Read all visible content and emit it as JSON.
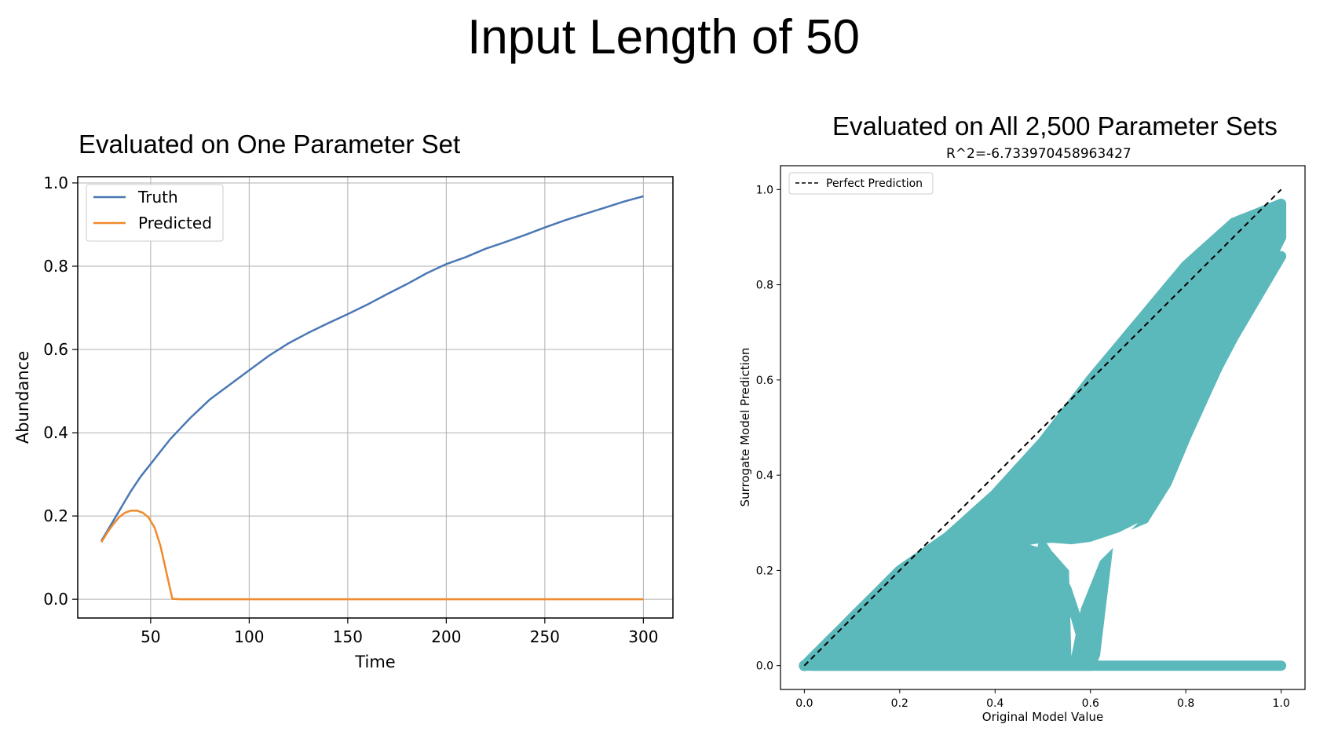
{
  "page": {
    "main_title": "Input Length of 50",
    "left_panel_title": "Evaluated on One Parameter Set",
    "right_panel_title": "Evaluated on All 2,500 Parameter Sets",
    "right_panel_subtitle": "R^2=-6.733970458963427"
  },
  "colors": {
    "truth": "#4a78b4",
    "predicted": "#f08a2e",
    "scatter": "#5bb8bb",
    "perfect": "#000000"
  },
  "chart_data": [
    {
      "type": "line",
      "title": "Evaluated on One Parameter Set",
      "xlabel": "Time",
      "ylabel": "Abundance",
      "xlim": [
        13,
        315
      ],
      "ylim": [
        -0.045,
        1.015
      ],
      "xticks": [
        50,
        100,
        150,
        200,
        250,
        300
      ],
      "yticks": [
        0.0,
        0.2,
        0.4,
        0.6,
        0.8,
        1.0
      ],
      "ytick_labels": [
        "0.0",
        "0.2",
        "0.4",
        "0.6",
        "0.8",
        "1.0"
      ],
      "grid": true,
      "legend": "top-left",
      "series": [
        {
          "name": "Truth",
          "x": [
            25,
            30,
            35,
            40,
            45,
            50,
            55,
            60,
            65,
            70,
            80,
            90,
            100,
            110,
            120,
            130,
            140,
            150,
            160,
            170,
            180,
            190,
            200,
            210,
            220,
            230,
            240,
            250,
            260,
            270,
            280,
            290,
            300
          ],
          "y": [
            0.14,
            0.18,
            0.22,
            0.26,
            0.295,
            0.325,
            0.355,
            0.385,
            0.41,
            0.435,
            0.48,
            0.515,
            0.55,
            0.585,
            0.615,
            0.64,
            0.663,
            0.685,
            0.708,
            0.733,
            0.757,
            0.783,
            0.805,
            0.822,
            0.842,
            0.858,
            0.875,
            0.893,
            0.91,
            0.925,
            0.94,
            0.955,
            0.968
          ]
        },
        {
          "name": "Predicted",
          "x": [
            25,
            28,
            31,
            34,
            37,
            40,
            43,
            46,
            49,
            52,
            55,
            58,
            61,
            65,
            100,
            150,
            200,
            250,
            300
          ],
          "y": [
            0.137,
            0.16,
            0.18,
            0.197,
            0.208,
            0.213,
            0.213,
            0.208,
            0.196,
            0.172,
            0.128,
            0.065,
            0.001,
            0.0,
            0.0,
            0.0,
            0.0,
            0.0,
            0.0
          ]
        }
      ]
    },
    {
      "type": "scatter",
      "title": "R^2=-6.733970458963427",
      "xlabel": "Original Model Value",
      "ylabel": "Surrogate Model Prediction",
      "xlim": [
        -0.05,
        1.05
      ],
      "ylim": [
        -0.05,
        1.05
      ],
      "xticks": [
        0.0,
        0.2,
        0.4,
        0.6,
        0.8,
        1.0
      ],
      "yticks": [
        0.0,
        0.2,
        0.4,
        0.6,
        0.8,
        1.0
      ],
      "tick_labels": [
        "0.0",
        "0.2",
        "0.4",
        "0.6",
        "0.8",
        "1.0"
      ],
      "grid": false,
      "legend": "top-left",
      "series": [
        {
          "name": "Perfect Prediction",
          "x": [
            0.0,
            1.0
          ],
          "y": [
            0.0,
            1.0
          ]
        },
        {
          "name": "",
          "upper_envelope": {
            "x": [
              0.0,
              0.2,
              0.3,
              0.4,
              0.5,
              0.6,
              0.7,
              0.8,
              0.9,
              1.0
            ],
            "y": [
              0.0,
              0.2,
              0.27,
              0.36,
              0.47,
              0.6,
              0.72,
              0.84,
              0.93,
              0.97
            ]
          },
          "lower_envelope": {
            "x": [
              0.0,
              0.55,
              0.6,
              0.7,
              0.8,
              0.9,
              1.0
            ],
            "y": [
              0.0,
              0.0,
              0.0,
              0.24,
              0.48,
              0.7,
              0.9
            ]
          },
          "branch_a": {
            "x": [
              0.45,
              0.5,
              0.55,
              0.6,
              0.65,
              0.7,
              0.8,
              0.9,
              1.0
            ],
            "y": [
              0.26,
              0.27,
              0.27,
              0.28,
              0.3,
              0.35,
              0.5,
              0.69,
              0.86
            ]
          },
          "branch_b": {
            "x": [
              0.5,
              0.52,
              0.55,
              0.57,
              0.59,
              0.6
            ],
            "y": [
              0.25,
              0.22,
              0.16,
              0.1,
              0.03,
              0.0
            ]
          },
          "baseline": {
            "x": [
              0.02,
              1.0
            ],
            "y": [
              0.0,
              0.0
            ]
          }
        }
      ]
    }
  ]
}
